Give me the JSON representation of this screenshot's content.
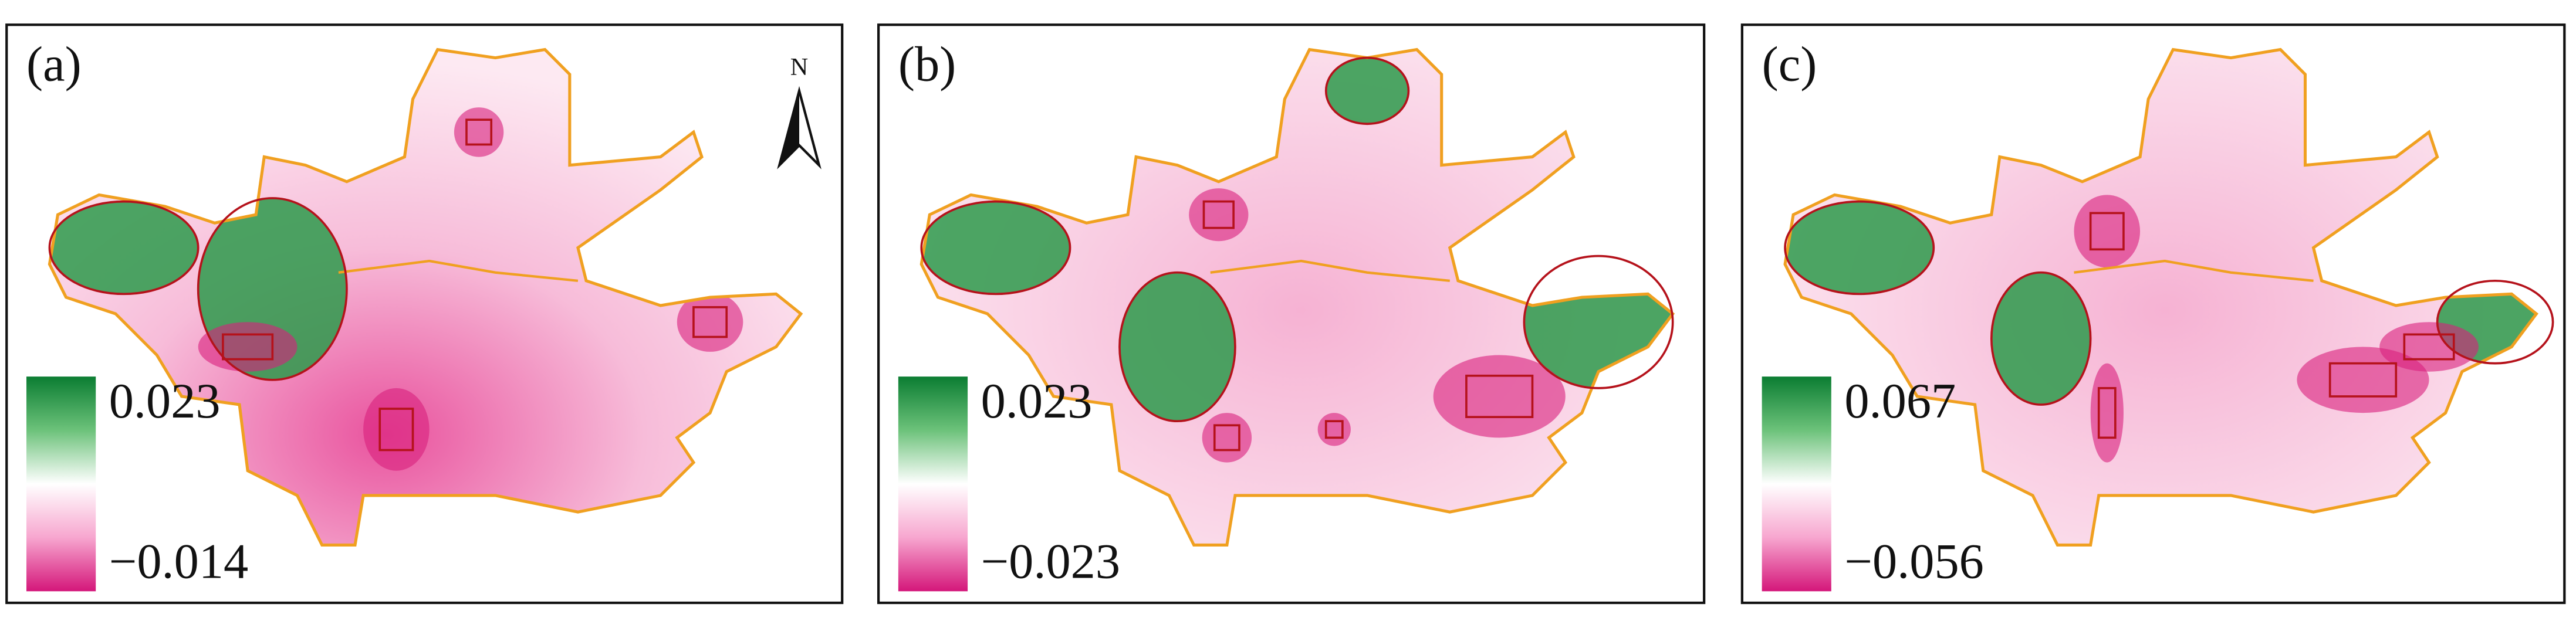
{
  "north": "N",
  "panels": [
    {
      "label": "(a)",
      "legend": {
        "max": "0.023",
        "min": "−0.014"
      }
    },
    {
      "label": "(b)",
      "legend": {
        "max": "0.023",
        "min": "−0.023"
      }
    },
    {
      "label": "(c)",
      "legend": {
        "max": "0.067",
        "min": "−0.056"
      }
    }
  ]
}
